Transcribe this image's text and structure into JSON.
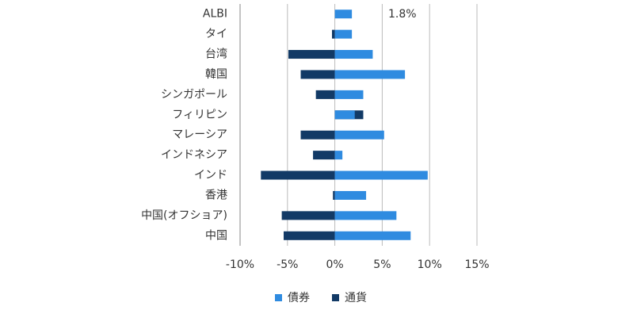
{
  "chart_data": {
    "type": "hbar",
    "categories": [
      "ALBI",
      "タイ",
      "台湾",
      "韓国",
      "シンガポール",
      "フィリピン",
      "マレーシア",
      "インドネシア",
      "インド",
      "香港",
      "中国(オフショア)",
      "中国"
    ],
    "series": [
      {
        "name": "債券",
        "color": "#2f8be0",
        "values": [
          1.8,
          1.8,
          4.0,
          7.4,
          3.0,
          2.1,
          5.2,
          0.8,
          9.8,
          3.3,
          6.5,
          8.0
        ]
      },
      {
        "name": "通貨",
        "color": "#123a66",
        "values": [
          0,
          -0.3,
          -4.9,
          -3.6,
          -2.0,
          3.0,
          -3.6,
          -2.3,
          -7.8,
          -0.2,
          -5.6,
          -5.4
        ]
      }
    ],
    "xlim": [
      -10,
      15
    ],
    "xticks": [
      {
        "value": -10,
        "label": "-10%"
      },
      {
        "value": -5,
        "label": "-5%"
      },
      {
        "value": 0,
        "label": "0%"
      },
      {
        "value": 5,
        "label": "5%"
      },
      {
        "value": 10,
        "label": "10%"
      },
      {
        "value": 15,
        "label": "15%"
      }
    ],
    "grid": true,
    "annotation": "1.8%"
  }
}
